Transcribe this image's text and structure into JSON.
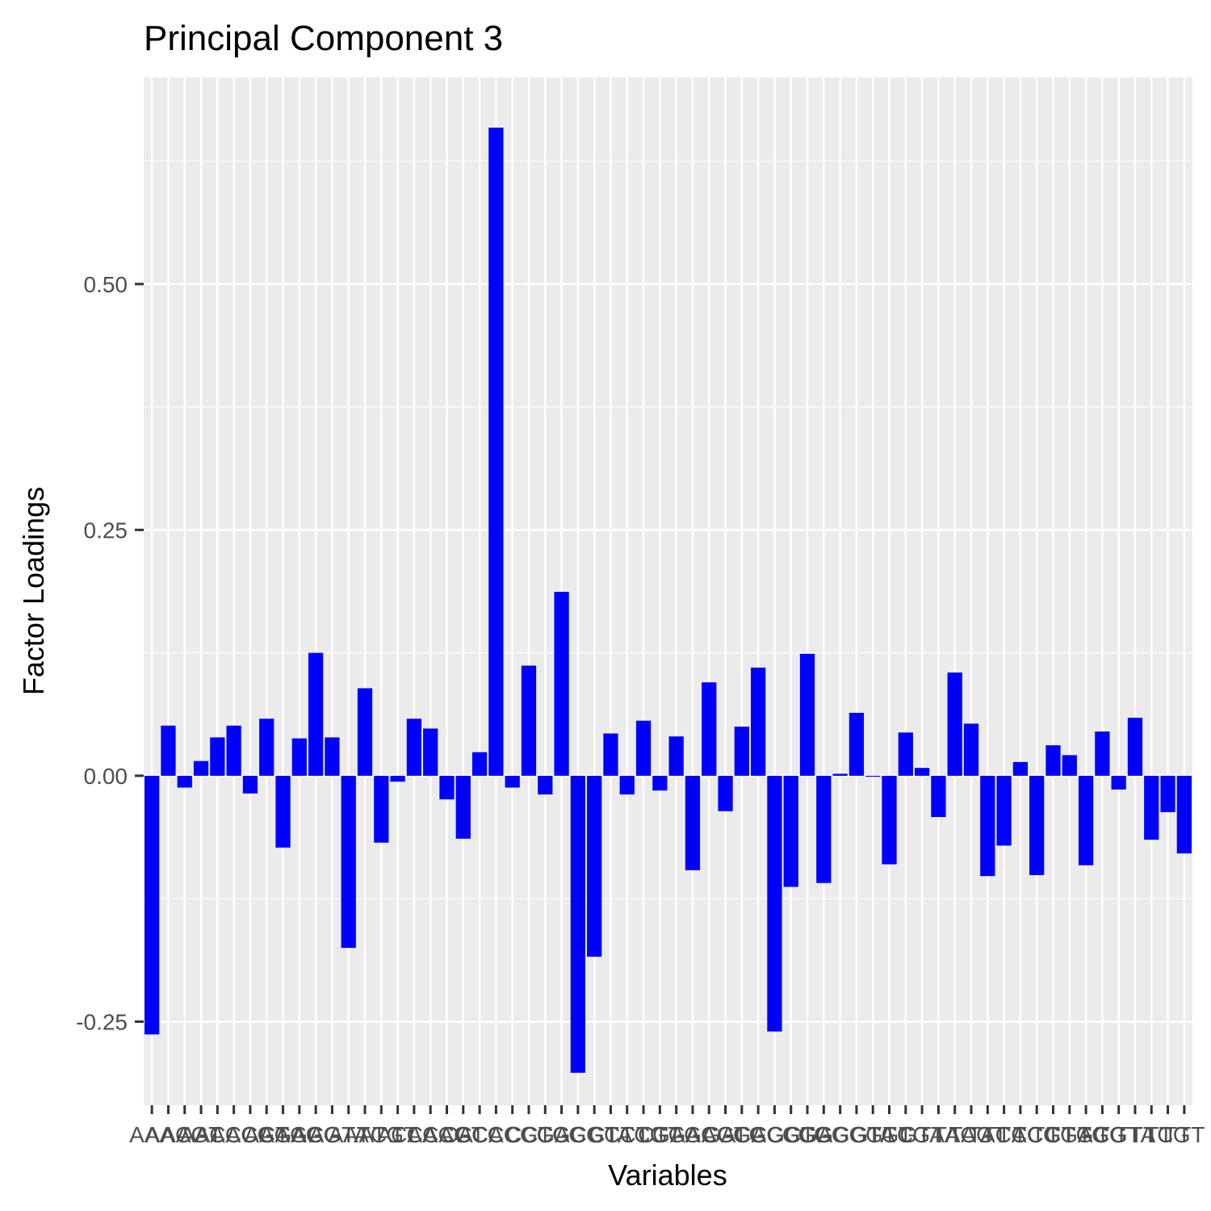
{
  "chart_data": {
    "type": "bar",
    "title": "Principal Component 3",
    "xlabel": "Variables",
    "ylabel": "Factor Loadings",
    "ylim": [
      -0.335,
      0.71
    ],
    "yticks": [
      -0.25,
      0.0,
      0.25,
      0.5
    ],
    "ytick_labels": [
      "-0.25",
      "0.00",
      "0.25",
      "0.50"
    ],
    "grid": true,
    "bar_color": "#0000ff",
    "panel_color": "#ebebeb",
    "categories": [
      "AAA",
      "AAC",
      "AAG",
      "AAT",
      "ACA",
      "ACC",
      "ACG",
      "ACT",
      "AGA",
      "AGC",
      "AGG",
      "AGT",
      "ATA",
      "ATC",
      "ATG",
      "ATT",
      "CAA",
      "CAC",
      "CAG",
      "CAT",
      "CCA",
      "CCC",
      "CCG",
      "CCT",
      "CGA",
      "CGC",
      "CGG",
      "CGT",
      "CTA",
      "CTC",
      "CTG",
      "CTT",
      "GAA",
      "GAC",
      "GAG",
      "GAT",
      "GCA",
      "GCC",
      "GCG",
      "GCT",
      "GGA",
      "GGC",
      "GGG",
      "GGT",
      "GTA",
      "GTC",
      "GTG",
      "GTT",
      "TAA",
      "TAC",
      "TAG",
      "TAT",
      "TCA",
      "TCC",
      "TCG",
      "TCT",
      "TGA",
      "TGC",
      "TGG",
      "TGT",
      "TTA",
      "TTC",
      "TTG",
      "TTT"
    ],
    "values": [
      -0.263,
      0.051,
      -0.012,
      0.015,
      0.039,
      0.051,
      -0.018,
      0.058,
      -0.073,
      0.038,
      0.125,
      0.039,
      -0.175,
      0.089,
      -0.068,
      -0.006,
      0.058,
      0.048,
      -0.024,
      -0.064,
      0.024,
      0.659,
      -0.012,
      0.112,
      -0.019,
      0.187,
      -0.302,
      -0.184,
      0.043,
      -0.019,
      0.056,
      -0.015,
      0.04,
      -0.096,
      0.095,
      -0.036,
      0.05,
      0.11,
      -0.26,
      -0.113,
      0.124,
      -0.109,
      0.002,
      0.064,
      -0.001,
      -0.09,
      0.044,
      0.008,
      -0.042,
      0.105,
      0.053,
      -0.102,
      -0.071,
      0.014,
      -0.101,
      0.031,
      0.021,
      -0.091,
      0.045,
      -0.014,
      0.059,
      -0.065,
      -0.037,
      -0.079
    ]
  }
}
